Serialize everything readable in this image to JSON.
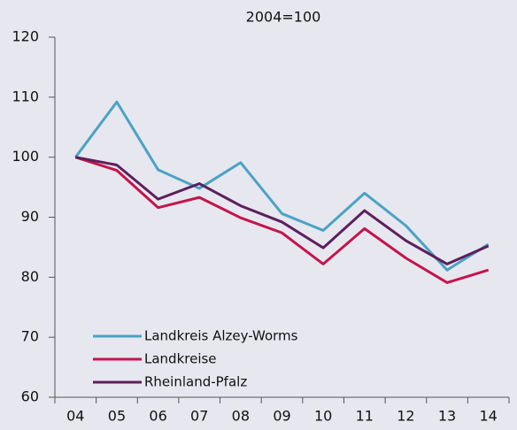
{
  "chart_data": {
    "type": "line",
    "title": "2004=100",
    "categories": [
      "04",
      "05",
      "06",
      "07",
      "08",
      "09",
      "10",
      "11",
      "12",
      "13",
      "14"
    ],
    "series": [
      {
        "name": "Landkreis Alzey-Worms",
        "color": "#4aa3c4",
        "values": [
          100,
          109.2,
          97.9,
          94.8,
          99.1,
          90.6,
          87.8,
          94.0,
          88.6,
          81.2,
          85.5
        ]
      },
      {
        "name": "Landkreise",
        "color": "#c4144c",
        "values": [
          100,
          97.8,
          91.6,
          93.3,
          89.9,
          87.4,
          82.2,
          88.1,
          83.2,
          79.1,
          81.2
        ]
      },
      {
        "name": "Rheinland-Pfalz",
        "color": "#5c1f5c",
        "values": [
          100,
          98.7,
          93.0,
          95.6,
          91.9,
          89.2,
          84.9,
          91.1,
          86.1,
          82.2,
          85.2
        ]
      }
    ],
    "ylim": [
      60,
      120
    ],
    "yticks": [
      60,
      70,
      80,
      90,
      100,
      110,
      120
    ],
    "grid": false,
    "legend": "lower left"
  }
}
